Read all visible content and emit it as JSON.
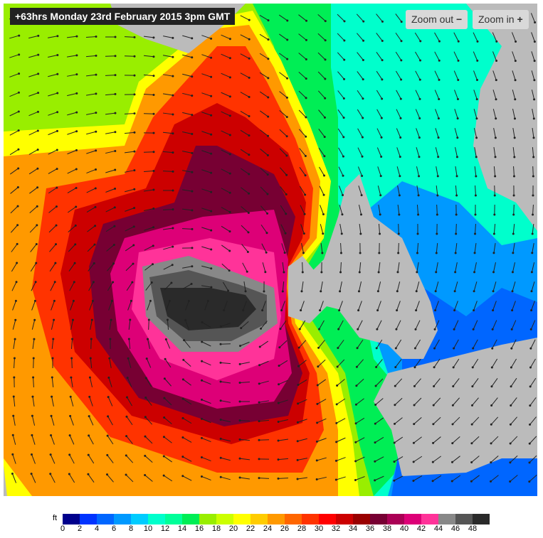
{
  "header": {
    "title": "+63hrs Monday 23rd February 2015 3pm GMT"
  },
  "controls": {
    "zoom_out": "Zoom out",
    "zoom_in": "Zoom in"
  },
  "legend": {
    "unit": "ft",
    "items": [
      {
        "label": 0,
        "color": "#00008c"
      },
      {
        "label": 2,
        "color": "#0033ff"
      },
      {
        "label": 4,
        "color": "#0066ff"
      },
      {
        "label": 6,
        "color": "#0099ff"
      },
      {
        "label": 8,
        "color": "#00ccff"
      },
      {
        "label": 10,
        "color": "#00ffcc"
      },
      {
        "label": 12,
        "color": "#00ff99"
      },
      {
        "label": 14,
        "color": "#00ee55"
      },
      {
        "label": 16,
        "color": "#99ee00"
      },
      {
        "label": 18,
        "color": "#ccff00"
      },
      {
        "label": 20,
        "color": "#ffff00"
      },
      {
        "label": 22,
        "color": "#ffcc00"
      },
      {
        "label": 24,
        "color": "#ff9900"
      },
      {
        "label": 26,
        "color": "#ff6600"
      },
      {
        "label": 28,
        "color": "#ff3300"
      },
      {
        "label": 30,
        "color": "#ff0000"
      },
      {
        "label": 32,
        "color": "#cc0000"
      },
      {
        "label": 34,
        "color": "#990000"
      },
      {
        "label": 36,
        "color": "#770033"
      },
      {
        "label": 38,
        "color": "#aa0055"
      },
      {
        "label": 40,
        "color": "#dd0077"
      },
      {
        "label": 42,
        "color": "#ff3399"
      },
      {
        "label": 44,
        "color": "#888888"
      },
      {
        "label": 46,
        "color": "#555555"
      },
      {
        "label": 48,
        "color": "#2a2a2a"
      }
    ],
    "end_color": "#111111"
  }
}
